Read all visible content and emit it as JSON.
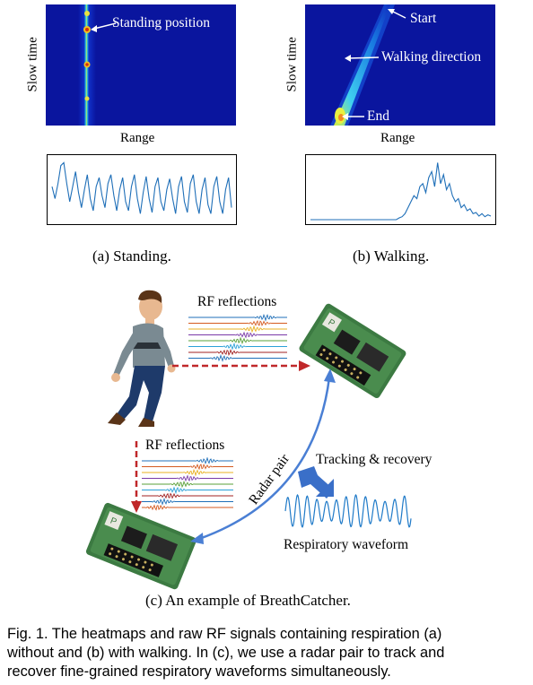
{
  "panel_a": {
    "ylabel": "Slow time",
    "xlabel": "Range",
    "annotation": "Standing position",
    "caption": "(a) Standing.",
    "waveform": [
      0.55,
      0.35,
      0.6,
      0.9,
      0.95,
      0.6,
      0.3,
      0.55,
      0.8,
      0.45,
      0.2,
      0.5,
      0.75,
      0.35,
      0.15,
      0.55,
      0.7,
      0.4,
      0.2,
      0.6,
      0.75,
      0.4,
      0.15,
      0.5,
      0.7,
      0.3,
      0.15,
      0.55,
      0.75,
      0.35,
      0.1,
      0.45,
      0.72,
      0.35,
      0.12,
      0.55,
      0.7,
      0.3,
      0.15,
      0.5,
      0.68,
      0.35,
      0.1,
      0.55,
      0.72,
      0.3,
      0.12,
      0.6,
      0.75,
      0.3,
      0.1,
      0.5,
      0.7,
      0.25,
      0.1,
      0.55,
      0.72,
      0.3,
      0.1,
      0.5,
      0.7,
      0.2
    ]
  },
  "panel_b": {
    "ylabel": "Slow time",
    "xlabel": "Range",
    "annotations": {
      "start": "Start",
      "direction": "Walking direction",
      "end": "End"
    },
    "caption": "(b) Walking.",
    "waveform": [
      0,
      0,
      0,
      0,
      0,
      0,
      0,
      0,
      0,
      0,
      0,
      0,
      0,
      0,
      0,
      0,
      0,
      0,
      0,
      0,
      0,
      0,
      0,
      0,
      0,
      0,
      0,
      0,
      0,
      0,
      0.03,
      0.05,
      0.1,
      0.2,
      0.3,
      0.4,
      0.35,
      0.55,
      0.6,
      0.45,
      0.7,
      0.8,
      0.55,
      0.95,
      0.6,
      0.75,
      0.5,
      0.6,
      0.4,
      0.3,
      0.35,
      0.2,
      0.25,
      0.15,
      0.18,
      0.1,
      0.12,
      0.06,
      0.1,
      0.05,
      0.08,
      0.06
    ]
  },
  "panel_c": {
    "rf_top": "RF reflections",
    "rf_left": "RF reflections",
    "radar_pair": "Radar pair",
    "tracking": "Tracking & recovery",
    "respiratory": "Respiratory waveform",
    "caption": "(c) An example of BreathCatcher."
  },
  "figure_caption": [
    "Fig. 1. The heatmaps and raw RF signals containing respiration (a)",
    "without and (b) with walking. In (c), we use a radar pair to track and",
    "recover fine-grained respiratory waveforms simultaneously."
  ],
  "colors": {
    "heatmap_bg": "#08139a",
    "signal": "#1f6fb8",
    "arrow_red": "#c0282a",
    "arrow_blue": "#4a7fd4"
  }
}
